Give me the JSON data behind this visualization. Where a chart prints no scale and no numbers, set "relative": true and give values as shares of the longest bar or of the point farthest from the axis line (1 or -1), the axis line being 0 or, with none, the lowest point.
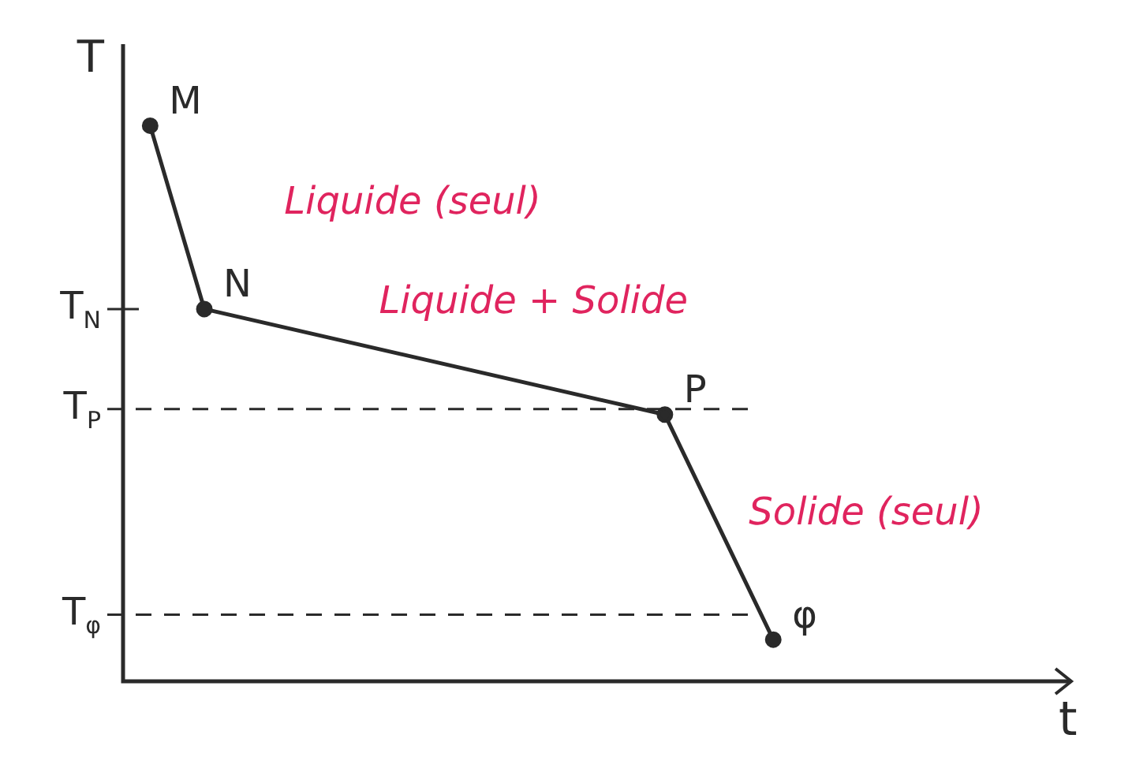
{
  "chart_data": {
    "type": "line",
    "xlabel": "t",
    "ylabel": "T",
    "relative": true,
    "categories": [
      null,
      null,
      null,
      null,
      null,
      null,
      null,
      null,
      null,
      null,
      null,
      null,
      null,
      null,
      null,
      null,
      null,
      null,
      null,
      null,
      null,
      null,
      null,
      null,
      null,
      null,
      null,
      null,
      null,
      null,
      null,
      null,
      null,
      null,
      null,
      null
    ],
    "series": [
      {
        "color": "#2a2a2a",
        "values": [
          null,
          1,
          null,
          0.67,
          null,
          null,
          null,
          null,
          null,
          null,
          null,
          null,
          null,
          null,
          null,
          null,
          null,
          null,
          null,
          null,
          0.48,
          null,
          null,
          null,
          0.075,
          null,
          null,
          null,
          null,
          null,
          null,
          null,
          null,
          null,
          null,
          null
        ]
      }
    ],
    "tick_labels": false,
    "marker": "circle",
    "line_style": "solid",
    "grid": false,
    "legend": false,
    "ref_lines": [
      {
        "axis": "y",
        "value": 0.67,
        "label": "T$_{N}$",
        "color": "#2a2a2a"
      },
      {
        "axis": "y",
        "value": 0.49,
        "label": "T$_{P}$",
        "line_style": "dashed",
        "color": "#2a2a2a"
      },
      {
        "axis": "y",
        "value": 0.12,
        "label": "T$_{φ}$",
        "line_style": "dashed",
        "color": "#2a2a2a"
      }
    ],
    "annotations": [
      "M",
      "N",
      "P",
      "φ",
      "Liquide (seul)",
      "Liquide + Solide",
      "Solide (seul)"
    ]
  }
}
